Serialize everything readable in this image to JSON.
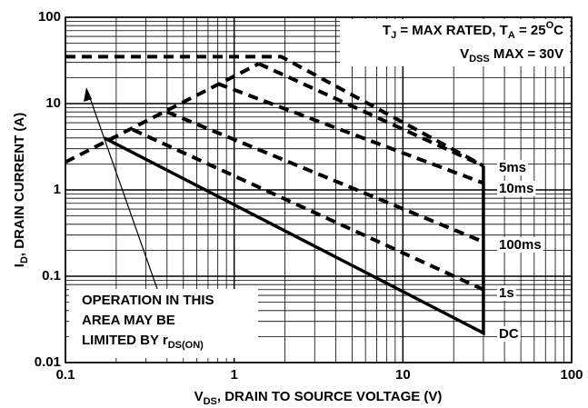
{
  "chart_data": {
    "type": "line",
    "log_x": true,
    "log_y": true,
    "grid": true,
    "xlim": [
      0.1,
      100
    ],
    "ylim": [
      0.01,
      100
    ],
    "xticks": [
      0.1,
      1,
      10,
      100
    ],
    "yticks": [
      0.01,
      0.1,
      1,
      10,
      100
    ],
    "x_label": [
      "V",
      "DS",
      ", DRAIN TO SOURCE VOLTAGE (V)"
    ],
    "y_label": [
      "I",
      "D",
      ", DRAIN CURRENT (A)"
    ],
    "annotations": {
      "conditions": [
        "T",
        "J",
        " = MAX RATED, T",
        "A",
        " = 25",
        "O",
        "C"
      ],
      "vdss": [
        "V",
        "DSS",
        " MAX = 30V"
      ],
      "operation": [
        "OPERATION IN THIS",
        "AREA MAY BE",
        "LIMITED BY r",
        "DS(ON)"
      ]
    },
    "series": [
      {
        "color": "#000000",
        "style": "dashed",
        "x": [
          0.1,
          1.9,
          30
        ],
        "values": [
          35,
          35,
          1.9
        ]
      },
      {
        "color": "#000000",
        "style": "dashed",
        "x": [
          0.1,
          1.4
        ],
        "values": [
          2.1,
          29
        ]
      },
      {
        "name": "5ms",
        "color": "#000000",
        "style": "dashed",
        "x": [
          1.4,
          30
        ],
        "values": [
          29,
          1.9
        ]
      },
      {
        "name": "10ms",
        "color": "#000000",
        "style": "dashed",
        "x": [
          0.8,
          30
        ],
        "values": [
          17,
          1.2
        ]
      },
      {
        "name": "100ms",
        "color": "#000000",
        "style": "dashed",
        "x": [
          0.4,
          30
        ],
        "values": [
          8,
          0.25
        ]
      },
      {
        "name": "1s",
        "color": "#000000",
        "style": "dashed",
        "x": [
          0.25,
          30
        ],
        "values": [
          5,
          0.07
        ]
      },
      {
        "name": "DC",
        "color": "#000000",
        "style": "solid",
        "x": [
          0.17,
          30,
          30
        ],
        "values": [
          4,
          0.022,
          1.9
        ]
      }
    ]
  }
}
